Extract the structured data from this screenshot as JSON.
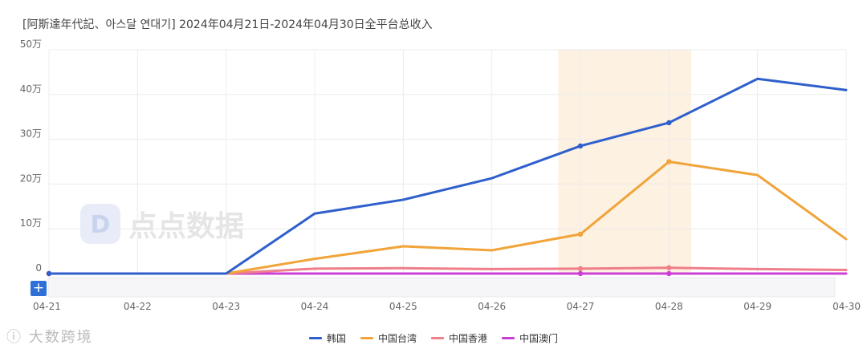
{
  "header": {
    "title": "[阿斯達年代記、아스달 연대기]  2024年04月21日-2024年04月30日全平台总收入"
  },
  "controls": {
    "add_label": "+"
  },
  "watermarks": {
    "center": "点点数据",
    "bottom": "大数跨境"
  },
  "chart_data": {
    "type": "line",
    "title": "[阿斯達年代記、아스달 연대기]  2024年04月21日-2024年04月30日全平台总收入",
    "xlabel": "",
    "ylabel": "",
    "x": [
      "04-21",
      "04-22",
      "04-23",
      "04-24",
      "04-25",
      "04-26",
      "04-27",
      "04-28",
      "04-29",
      "04-30"
    ],
    "ylim": [
      0,
      500000
    ],
    "yticks": [
      0,
      100000,
      200000,
      300000,
      400000,
      500000
    ],
    "ytick_labels": [
      "0",
      "10万",
      "20万",
      "30万",
      "40万",
      "50万"
    ],
    "grid": true,
    "legend_position": "bottom-center",
    "highlight_range": [
      "04-27",
      "04-28"
    ],
    "highlight_color": "#fdf1e1",
    "series": [
      {
        "name": "韩国",
        "color": "#2f5fcc",
        "values": [
          0,
          0,
          0,
          134000,
          165000,
          213000,
          285000,
          337000,
          435000,
          410000
        ]
      },
      {
        "name": "中国台湾",
        "color": "#f0a43a",
        "values": [
          0,
          0,
          0,
          33000,
          61000,
          52000,
          88000,
          250000,
          220000,
          77000
        ]
      },
      {
        "name": "中国香港",
        "color": "#ef7f8a",
        "values": [
          0,
          0,
          0,
          11000,
          12000,
          10000,
          11000,
          13000,
          10000,
          8000
        ]
      },
      {
        "name": "中国澳门",
        "color": "#cc3fd6",
        "values": [
          0,
          0,
          0,
          0,
          0,
          0,
          0,
          0,
          0,
          0
        ]
      }
    ]
  }
}
